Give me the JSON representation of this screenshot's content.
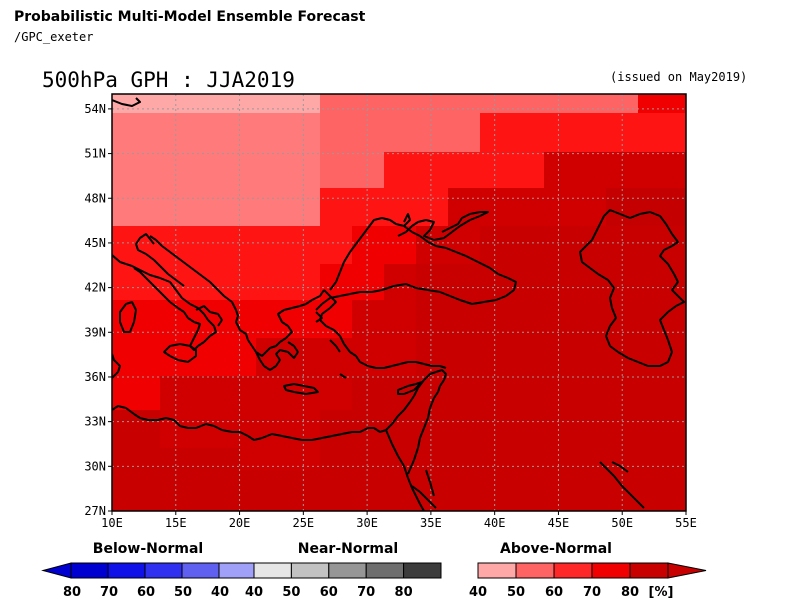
{
  "header": {
    "title": "Probabilistic Multi-Model Ensemble Forecast",
    "subtitle": "/GPC_exeter",
    "map_title": "500hPa GPH : JJA2019",
    "issued": "(issued on May2019)"
  },
  "map": {
    "lon_range": [
      10,
      55
    ],
    "lat_range": [
      27,
      55
    ],
    "x_ticks": [
      "10E",
      "15E",
      "20E",
      "25E",
      "30E",
      "35E",
      "40E",
      "45E",
      "50E",
      "55E"
    ],
    "y_ticks": [
      "54N",
      "51N",
      "48N",
      "45N",
      "42N",
      "39N",
      "36N",
      "33N",
      "30N",
      "27N"
    ],
    "grid": true,
    "category": "Above-Normal",
    "probability_cells": [
      {
        "lon": [
          10,
          26
        ],
        "lat": [
          46.2,
          55
        ],
        "prob": 50
      },
      {
        "lon": [
          10,
          26
        ],
        "lat": [
          53.8,
          55
        ],
        "prob": 40
      },
      {
        "lon": [
          26,
          37
        ],
        "lat": [
          48.7,
          55
        ],
        "prob": 50
      },
      {
        "lon": [
          37,
          48
        ],
        "lat": [
          51.2,
          55
        ],
        "prob": 50
      },
      {
        "lon": [
          48,
          51.2
        ],
        "lat": [
          53.8,
          55
        ],
        "prob": 50
      },
      {
        "lon": [
          26,
          53
        ],
        "lat": [
          53.8,
          55
        ],
        "prob": 40
      },
      {
        "lon": [
          10,
          27
        ],
        "lat": [
          33.7,
          46.2
        ],
        "prob": 70
      },
      {
        "lon": [
          26,
          55
        ],
        "lat": [
          27,
          48.7
        ],
        "prob": 80
      },
      {
        "lon": [
          10,
          55
        ],
        "lat": [
          27,
          33.7
        ],
        "prob": 80
      }
    ]
  },
  "legend": {
    "below": {
      "title": "Below-Normal",
      "ticks": [
        "80",
        "70",
        "60",
        "50",
        "40"
      ],
      "colors": [
        "#0000d0",
        "#1010e8",
        "#3030f0",
        "#6060f0",
        "#a0a0f8"
      ]
    },
    "near": {
      "title": "Near-Normal",
      "ticks": [
        "40",
        "50",
        "60",
        "70",
        "80"
      ],
      "colors": [
        "#e6e6e6",
        "#c2c2c2",
        "#969696",
        "#6e6e6e",
        "#3c3c3c"
      ]
    },
    "above": {
      "title": "Above-Normal",
      "ticks": [
        "40",
        "50",
        "60",
        "70",
        "80"
      ],
      "unit": "[%]",
      "colors": [
        "#ffa8a8",
        "#ff6464",
        "#ff2828",
        "#f00000",
        "#c80000"
      ]
    }
  }
}
